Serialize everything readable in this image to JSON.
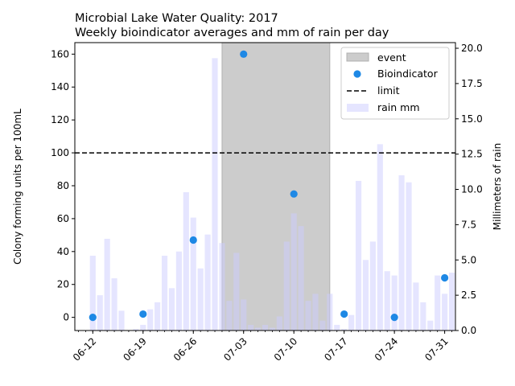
{
  "chart_data": {
    "type": "bar",
    "title": "Microbial Lake Water Quality: 2017",
    "subtitle": "Weekly bioindicator averages and mm of rain per day",
    "ylabel": "Colony forming units per 100mL",
    "y2label": "Millimeters of rain",
    "ylim": [
      -8,
      167
    ],
    "y2lim": [
      0,
      20.4
    ],
    "yticks": [
      0,
      20,
      40,
      60,
      80,
      100,
      120,
      140,
      160
    ],
    "y2ticks": [
      "0.0",
      "2.5",
      "5.0",
      "7.5",
      "10.0",
      "12.5",
      "15.0",
      "17.5",
      "20.0"
    ],
    "x_start": "06-10",
    "xlim": [
      -0.5,
      52.5
    ],
    "xtick_labels": [
      "06-12",
      "06-19",
      "06-26",
      "07-03",
      "07-10",
      "07-17",
      "07-24",
      "07-31"
    ],
    "xtick_days": [
      2,
      9,
      16,
      23,
      30,
      37,
      44,
      51
    ],
    "event": {
      "label": "event",
      "start_day": 20,
      "end_day": 35,
      "color": "#cccccc"
    },
    "limit": {
      "label": "limit",
      "value": 100
    },
    "bioindicator": {
      "label": "Bioindicator",
      "color": "#1e88e5",
      "points": [
        {
          "day": 2,
          "value": 0
        },
        {
          "day": 9,
          "value": 2
        },
        {
          "day": 16,
          "value": 47
        },
        {
          "day": 23,
          "value": 160
        },
        {
          "day": 30,
          "value": 75
        },
        {
          "day": 37,
          "value": 2
        },
        {
          "day": 44,
          "value": 0
        },
        {
          "day": 51,
          "value": 24
        }
      ]
    },
    "rain": {
      "label": "rain mm",
      "color": "#e0e0ff",
      "values": [
        0,
        0,
        5.3,
        2.5,
        6.5,
        3.7,
        1.4,
        0,
        0.1,
        0.4,
        1.5,
        2.0,
        5.3,
        3.0,
        5.6,
        9.8,
        8.0,
        4.4,
        6.8,
        19.3,
        6.2,
        2.1,
        5.5,
        2.2,
        0.4,
        0.2,
        0.4,
        0.2,
        1.0,
        6.3,
        8.3,
        7.4,
        2.1,
        2.6,
        0.7,
        2.6,
        0.4,
        0.1,
        1.1,
        10.6,
        5.0,
        6.3,
        13.2,
        4.2,
        3.9,
        11.0,
        10.5,
        3.4,
        2.0,
        0.7,
        3.9,
        2.6,
        4.1
      ]
    }
  }
}
